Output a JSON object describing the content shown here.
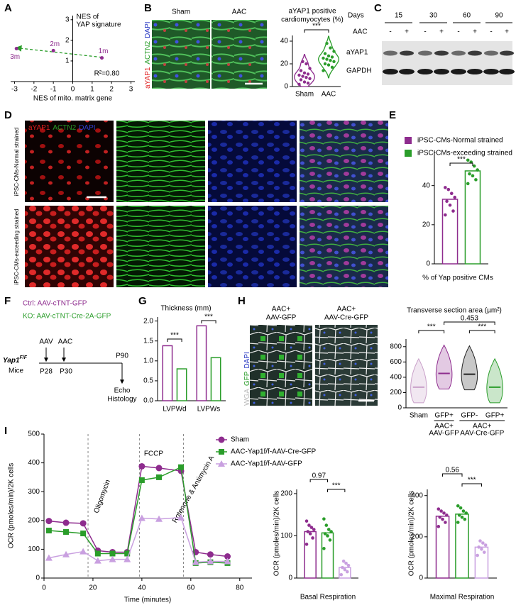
{
  "panel_letters": [
    "A",
    "B",
    "C",
    "D",
    "E",
    "F",
    "G",
    "H",
    "I"
  ],
  "micrograph_b": {
    "columns": [
      "Sham",
      "AAC"
    ],
    "stains": [
      {
        "text": "aYAP1",
        "color": "#e02020"
      },
      {
        "text": "ACTN2",
        "color": "#2a9d2a"
      },
      {
        "text": "DAPI",
        "color": "#2030c0"
      }
    ]
  },
  "blot_c": {
    "days_label": "Days",
    "days": [
      "15",
      "30",
      "60",
      "90"
    ],
    "aac_label": "AAC",
    "aac_signs": [
      "-",
      "+",
      "-",
      "+",
      "-",
      "+",
      "-",
      "+"
    ],
    "rows": [
      "aYAP1",
      "GAPDH"
    ]
  },
  "micrograph_d": {
    "stains": [
      {
        "text": "aYAP1",
        "color": "#e02020"
      },
      {
        "text": "ACTN2",
        "color": "#2a9d2a"
      },
      {
        "text": "DAPI",
        "color": "#3040d0"
      }
    ],
    "rows": [
      "iPSC-CMs-Normal strained",
      "iPSC-CMs-exceeding strained"
    ]
  },
  "scheme_f": {
    "ctrl": "Ctrl: AAV-cTNT-GFP",
    "ko": "KO: AAV-cTNT-Cre-2A-GFP",
    "mouse": "Yap1",
    "mouse_genotype": "F/F",
    "mice": "Mice",
    "events": [
      {
        "label": "AAV",
        "time": "P28"
      },
      {
        "label": "AAC",
        "time": "P30"
      }
    ],
    "end_time": "P90",
    "readout": [
      "Echo",
      "Histology"
    ]
  },
  "micrograph_h": {
    "columns": [
      [
        "AAC+",
        "AAV-GFP"
      ],
      [
        "AAC+",
        "AAV-Cre-GFP"
      ]
    ],
    "stains": [
      {
        "text": "WGA",
        "color": "#bbbbbb"
      },
      {
        "text": "GFP",
        "color": "#2a9d2a"
      },
      {
        "text": "DAPI",
        "color": "#2030c0"
      }
    ]
  },
  "chart_data": [
    {
      "type": "scatter",
      "x_label": "NES of mito. matrix gene",
      "y_label": [
        "NES of",
        "YAP signature"
      ],
      "x": [
        -2.9,
        -1,
        1.5
      ],
      "values": [
        1.6,
        1.5,
        1.15
      ],
      "point_labels": [
        "3m",
        "2m",
        "1m"
      ],
      "color": "#8e2c8e",
      "trend_color": "#2a9d2a",
      "annotation": "R²=0.80",
      "xlim": [
        -3.2,
        3.2
      ],
      "xticks": [
        -3,
        -2,
        -1,
        0,
        1,
        2,
        3
      ],
      "ylim": [
        0,
        3.2
      ],
      "yticks": [
        1,
        2,
        3
      ]
    },
    {
      "type": "violin",
      "title": [
        "aYAP1 positive",
        "cardiomyocytes (%)"
      ],
      "categories": [
        "Sham",
        "AAC"
      ],
      "colors": [
        "#8e2c8e",
        "#2a9d2a"
      ],
      "points": [
        [
          2,
          3,
          4,
          6,
          7,
          8,
          9,
          10,
          11,
          12,
          14,
          16,
          20,
          22
        ],
        [
          14,
          17,
          19,
          20,
          22,
          23,
          24,
          25,
          26,
          27,
          29,
          31,
          34,
          38
        ]
      ],
      "ylim": [
        0,
        45
      ],
      "yticks": [
        0,
        20,
        40
      ],
      "significance": [
        "***"
      ]
    },
    {
      "type": "bar",
      "series": [
        {
          "name": "iPSC-CMs-Normal strained",
          "color": "#8e2c8e",
          "values": [
            33
          ],
          "points": [
            [
              25,
              27,
              30,
              32,
              34,
              36,
              38,
              39
            ]
          ]
        },
        {
          "name": "iPSC-CMs-exceeding strained",
          "color": "#2a9d2a",
          "values": [
            47.5
          ],
          "points": [
            [
              41,
              43,
              45,
              46,
              48,
              50,
              52,
              53
            ]
          ]
        }
      ],
      "x_label": "% of Yap positive CMs",
      "ylim": [
        0,
        58
      ],
      "yticks": [
        0,
        20,
        40
      ],
      "significance": [
        "***"
      ]
    },
    {
      "type": "bar",
      "title": "Thickness (mm)",
      "categories": [
        "LVPWd",
        "LVPWs"
      ],
      "series": [
        {
          "color": "#8e2c8e",
          "values": [
            1.38,
            1.88
          ]
        },
        {
          "color": "#2a9d2a",
          "values": [
            0.8,
            1.08
          ]
        }
      ],
      "ylim": [
        0,
        2.1
      ],
      "yticks": [
        {
          "value": 0,
          "label": "0.0"
        },
        0.5,
        {
          "value": 1,
          "label": "1.0"
        },
        1.5,
        {
          "value": 2,
          "label": "2.0"
        }
      ],
      "significance": [
        "***",
        "***"
      ]
    },
    {
      "type": "violin",
      "title": "Transverse section area (µm²)",
      "categories": [
        "Sham",
        "GFP+",
        "GFP-",
        "GFP+"
      ],
      "group_labels": [
        [
          "AAC+",
          "AAV-GFP"
        ],
        [
          "AAC+",
          "AAV-Cre-GFP"
        ]
      ],
      "colors": [
        "#c9a0c9",
        "#8e2c8e",
        "#222222",
        "#2a9d2a"
      ],
      "values": [
        270,
        450,
        440,
        270
      ],
      "ylim": [
        0,
        900
      ],
      "yticks": [
        0,
        200,
        400,
        600,
        800
      ],
      "significance": [
        "***",
        "0.453",
        "***"
      ]
    },
    {
      "type": "line",
      "x_label": "Time (minutes)",
      "y_label": "OCR (pmoles/min)/2K cells",
      "x": [
        2,
        9,
        16,
        22,
        28,
        34,
        40,
        47,
        56,
        62,
        68,
        75
      ],
      "series": [
        {
          "name": "Sham",
          "color": "#8e2c8e",
          "marker": "circle",
          "values": [
            198,
            192,
            190,
            95,
            90,
            90,
            388,
            382,
            372,
            90,
            82,
            75
          ]
        },
        {
          "name": "AAC-Yap1f/f-AAV-Cre-GFP",
          "color": "#2a9d2a",
          "marker": "square",
          "values": [
            165,
            160,
            155,
            85,
            85,
            85,
            340,
            350,
            385,
            52,
            55,
            52
          ]
        },
        {
          "name": "AAC-Yap1f/f-AAV-GFP",
          "color": "#c9a0e0",
          "marker": "triangle",
          "values": [
            70,
            82,
            92,
            60,
            65,
            65,
            208,
            205,
            210,
            55,
            58,
            58
          ]
        }
      ],
      "xlim": [
        0,
        85
      ],
      "xticks": [
        0,
        20,
        40,
        60,
        80
      ],
      "ylim": [
        0,
        500
      ],
      "yticks": [
        0,
        100,
        200,
        300,
        400,
        500
      ],
      "injections": [
        {
          "x": 18,
          "label": "Oligomycin"
        },
        {
          "x": 39,
          "label": "FCCP"
        },
        {
          "x": 57,
          "label": "Rotenone & Antimycin A"
        }
      ]
    },
    {
      "type": "bar",
      "x_label": "Basal Respiration",
      "y_label": "OCR (pmoles/min)/2K cells",
      "values": [
        110,
        107,
        25
      ],
      "colors": [
        "#8e2c8e",
        "#2a9d2a",
        "#c9a0e0"
      ],
      "points": [
        [
          80,
          95,
          105,
          110,
          115,
          120,
          125,
          135
        ],
        [
          70,
          90,
          100,
          105,
          110,
          115,
          125,
          140
        ],
        [
          8,
          15,
          20,
          25,
          30,
          35,
          40
        ]
      ],
      "ylim": [
        0,
        210
      ],
      "yticks": [
        0,
        100,
        200
      ],
      "significance": [
        "0.97",
        "***"
      ]
    },
    {
      "type": "bar",
      "x_label": "Maximal Respiration",
      "y_label": "OCR (pmoles/min)/2K cells",
      "values": [
        300,
        310,
        150
      ],
      "colors": [
        "#8e2c8e",
        "#2a9d2a",
        "#c9a0e0"
      ],
      "points": [
        [
          250,
          270,
          285,
          295,
          305,
          315,
          325,
          335
        ],
        [
          270,
          285,
          295,
          305,
          315,
          325,
          340,
          350
        ],
        [
          110,
          125,
          140,
          150,
          160,
          170,
          180
        ]
      ],
      "ylim": [
        0,
        430
      ],
      "yticks": [
        0,
        200,
        400
      ],
      "significance": [
        "0.56",
        "***"
      ]
    }
  ]
}
